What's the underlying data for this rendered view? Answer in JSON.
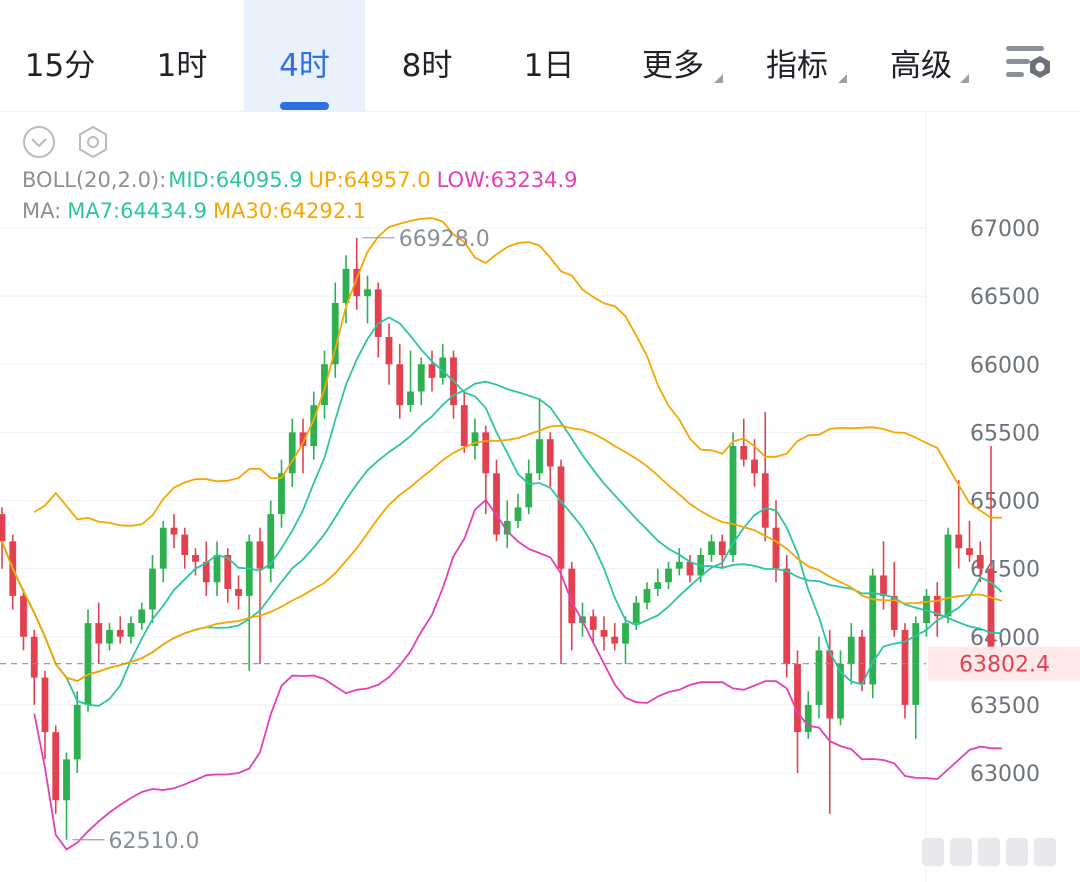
{
  "tabs": [
    {
      "label": "15分",
      "active": false
    },
    {
      "label": "1时",
      "active": false
    },
    {
      "label": "4时",
      "active": true
    },
    {
      "label": "8时",
      "active": false
    },
    {
      "label": "1日",
      "active": false
    },
    {
      "label": "更多",
      "active": false,
      "dropdown": true
    },
    {
      "label": "指标",
      "active": false,
      "dropdown": true
    },
    {
      "label": "高级",
      "active": false,
      "dropdown": true
    }
  ],
  "toolbar": {
    "collapse_icon": "chevron-down-circle-icon",
    "settings_icon": "hexagon-gear-icon",
    "chart_settings_icon": "sliders-gear-icon"
  },
  "legend": {
    "boll": {
      "name": "BOLL(20,2.0):",
      "mid": "MID:64095.9",
      "up": "UP:64957.0",
      "low": "LOW:63234.9"
    },
    "ma": {
      "name": "MA:",
      "ma7": "MA7:64434.9",
      "ma30": "MA30:64292.1"
    }
  },
  "colors": {
    "up": "#2eb051",
    "down": "#e2414f",
    "mid": "#2ec4a3",
    "upper": "#f7a600",
    "lower": "#e33fb9",
    "ma7": "#2ec4a3",
    "ma30": "#f7a600",
    "grid": "#eef0f3",
    "axis_text": "#6d737c",
    "price_tag_bg": "#fde9ea",
    "price_tag_text": "#e2414f"
  },
  "chart_data": {
    "type": "candlestick",
    "interval": "4时",
    "yticks": [
      63000,
      63500,
      64000,
      64500,
      65000,
      65500,
      66000,
      66500,
      67000
    ],
    "ylim": [
      62300,
      67180
    ],
    "last_price": "63802.4",
    "high_label": "66928.0",
    "low_label": "62510.0",
    "candles": [
      [
        64900,
        64700,
        64950,
        64500
      ],
      [
        64700,
        64300,
        64750,
        64200
      ],
      [
        64300,
        64000,
        64350,
        63900
      ],
      [
        64000,
        63700,
        64050,
        63500
      ],
      [
        63700,
        63300,
        63750,
        63100
      ],
      [
        63300,
        62800,
        63350,
        62700
      ],
      [
        62800,
        63100,
        63150,
        62510
      ],
      [
        63100,
        63500,
        63600,
        63000
      ],
      [
        63500,
        64100,
        64200,
        63450
      ],
      [
        64100,
        63950,
        64250,
        63800
      ],
      [
        63950,
        64050,
        64100,
        63900
      ],
      [
        64050,
        64000,
        64150,
        63950
      ],
      [
        64000,
        64100,
        64150,
        63950
      ],
      [
        64100,
        64200,
        64250,
        64050
      ],
      [
        64200,
        64500,
        64600,
        64100
      ],
      [
        64500,
        64800,
        64850,
        64400
      ],
      [
        64800,
        64750,
        64900,
        64650
      ],
      [
        64750,
        64600,
        64800,
        64500
      ],
      [
        64600,
        64550,
        64650,
        64450
      ],
      [
        64550,
        64400,
        64700,
        64300
      ],
      [
        64400,
        64600,
        64700,
        64300
      ],
      [
        64600,
        64350,
        64650,
        64250
      ],
      [
        64350,
        64300,
        64450,
        64200
      ],
      [
        64300,
        64700,
        64750,
        63750
      ],
      [
        64700,
        64500,
        64800,
        63800
      ],
      [
        64500,
        64900,
        65000,
        64400
      ],
      [
        64900,
        65200,
        65300,
        64800
      ],
      [
        65200,
        65500,
        65600,
        65100
      ],
      [
        65500,
        65400,
        65600,
        65200
      ],
      [
        65400,
        65700,
        65800,
        65300
      ],
      [
        65700,
        66000,
        66100,
        65600
      ],
      [
        66000,
        66450,
        66600,
        65900
      ],
      [
        66450,
        66700,
        66800,
        66300
      ],
      [
        66700,
        66500,
        66928,
        66400
      ],
      [
        66500,
        66550,
        66650,
        66300
      ],
      [
        66550,
        66200,
        66600,
        66050
      ],
      [
        66200,
        66000,
        66300,
        65850
      ],
      [
        66000,
        65700,
        66150,
        65600
      ],
      [
        65700,
        65800,
        66100,
        65650
      ],
      [
        65800,
        66000,
        66050,
        65700
      ],
      [
        66000,
        65900,
        66100,
        65800
      ],
      [
        65900,
        66050,
        66150,
        65850
      ],
      [
        66050,
        65700,
        66100,
        65600
      ],
      [
        65700,
        65400,
        65800,
        65350
      ],
      [
        65400,
        65500,
        65600,
        65300
      ],
      [
        65500,
        65200,
        65550,
        64900
      ],
      [
        65200,
        64750,
        65300,
        64700
      ],
      [
        64750,
        64850,
        65000,
        64650
      ],
      [
        64850,
        64950,
        65050,
        64800
      ],
      [
        64950,
        65200,
        65300,
        64900
      ],
      [
        65200,
        65450,
        65750,
        65150
      ],
      [
        65450,
        65250,
        65500,
        65100
      ],
      [
        65250,
        64500,
        65300,
        63800
      ],
      [
        64500,
        64100,
        64550,
        63900
      ],
      [
        64100,
        64150,
        64250,
        64000
      ],
      [
        64150,
        64050,
        64200,
        63950
      ],
      [
        64050,
        64000,
        64150,
        63900
      ],
      [
        64000,
        63950,
        64100,
        63900
      ],
      [
        63950,
        64100,
        64150,
        63800
      ],
      [
        64100,
        64250,
        64300,
        64050
      ],
      [
        64250,
        64350,
        64400,
        64200
      ],
      [
        64350,
        64400,
        64500,
        64300
      ],
      [
        64400,
        64500,
        64550,
        64350
      ],
      [
        64500,
        64550,
        64650,
        64450
      ],
      [
        64550,
        64450,
        64600,
        64400
      ],
      [
        64450,
        64600,
        64650,
        64400
      ],
      [
        64600,
        64700,
        64750,
        64550
      ],
      [
        64700,
        64600,
        64750,
        64500
      ],
      [
        64600,
        65400,
        65500,
        64550
      ],
      [
        65400,
        65300,
        65600,
        65250
      ],
      [
        65300,
        65200,
        65450,
        65100
      ],
      [
        65200,
        64800,
        65650,
        64700
      ],
      [
        64800,
        64500,
        65000,
        64400
      ],
      [
        64500,
        63800,
        64600,
        63700
      ],
      [
        63800,
        63300,
        63900,
        63000
      ],
      [
        63300,
        63500,
        63600,
        63250
      ],
      [
        63500,
        63900,
        64000,
        63400
      ],
      [
        63900,
        63400,
        64050,
        62700
      ],
      [
        63400,
        63800,
        63900,
        63350
      ],
      [
        63800,
        64000,
        64100,
        63650
      ],
      [
        64000,
        63650,
        64050,
        63600
      ],
      [
        63650,
        64450,
        64500,
        63550
      ],
      [
        64450,
        64300,
        64700,
        64200
      ],
      [
        64300,
        64050,
        64550,
        64000
      ],
      [
        64050,
        63500,
        64100,
        63400
      ],
      [
        63500,
        64100,
        64150,
        63250
      ],
      [
        64100,
        64300,
        64350,
        64000
      ],
      [
        64300,
        64150,
        64400,
        64000
      ],
      [
        64150,
        64750,
        64800,
        64100
      ],
      [
        64750,
        64650,
        65150,
        64500
      ],
      [
        64650,
        64600,
        64850,
        64550
      ],
      [
        64600,
        64500,
        64700,
        64400
      ],
      [
        64500,
        63850,
        65400,
        63800
      ],
      [
        63850,
        63802.4,
        63950,
        63750
      ]
    ]
  }
}
